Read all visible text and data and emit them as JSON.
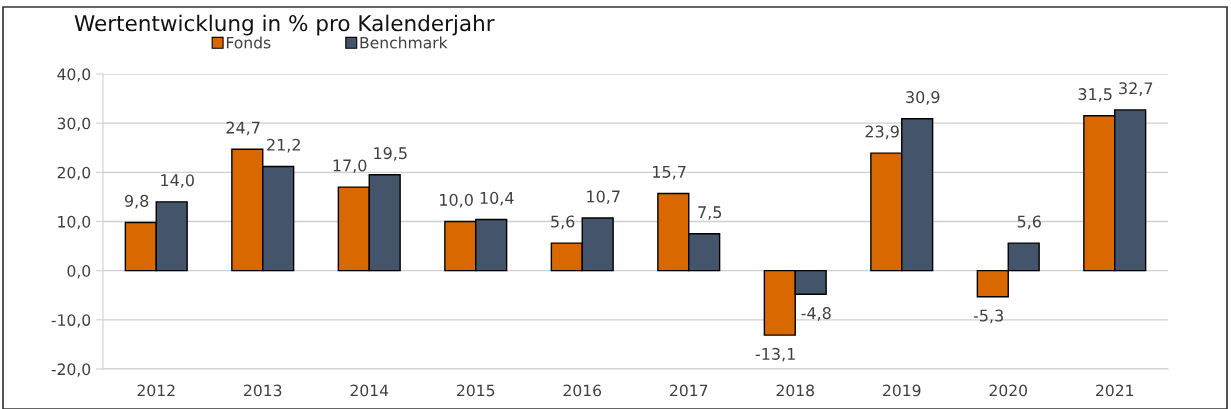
{
  "chart_data": {
    "type": "bar",
    "title": "Wertentwicklung in % pro Kalenderjahr",
    "categories": [
      "2012",
      "2013",
      "2014",
      "2015",
      "2016",
      "2017",
      "2018",
      "2019",
      "2020",
      "2021"
    ],
    "series": [
      {
        "name": "Fonds",
        "color": "#d96800",
        "values": [
          9.8,
          24.7,
          17.0,
          10.0,
          5.6,
          15.7,
          -13.1,
          23.9,
          -5.3,
          31.5
        ],
        "value_labels": [
          "9,8",
          "24,7",
          "17,0",
          "10,0",
          "5,6",
          "15,7",
          "-13,1",
          "23,9",
          "-5,3",
          "31,5"
        ]
      },
      {
        "name": "Benchmark",
        "color": "#44546a",
        "values": [
          14.0,
          21.2,
          19.5,
          10.4,
          10.7,
          7.5,
          -4.8,
          30.9,
          5.6,
          32.7
        ],
        "value_labels": [
          "14,0",
          "21,2",
          "19,5",
          "10,4",
          "10,7",
          "7,5",
          "-4,8",
          "30,9",
          "5,6",
          "32,7"
        ]
      }
    ],
    "ylim": [
      -20,
      40
    ],
    "yticks": [
      {
        "value": -20,
        "label": "-20,0"
      },
      {
        "value": -10,
        "label": "-10,0"
      },
      {
        "value": 0,
        "label": "0,0"
      },
      {
        "value": 10,
        "label": "10,0"
      },
      {
        "value": 20,
        "label": "20,0"
      },
      {
        "value": 30,
        "label": "30,0"
      },
      {
        "value": 40,
        "label": "40,0"
      }
    ],
    "grid": "y",
    "legend": "top"
  }
}
